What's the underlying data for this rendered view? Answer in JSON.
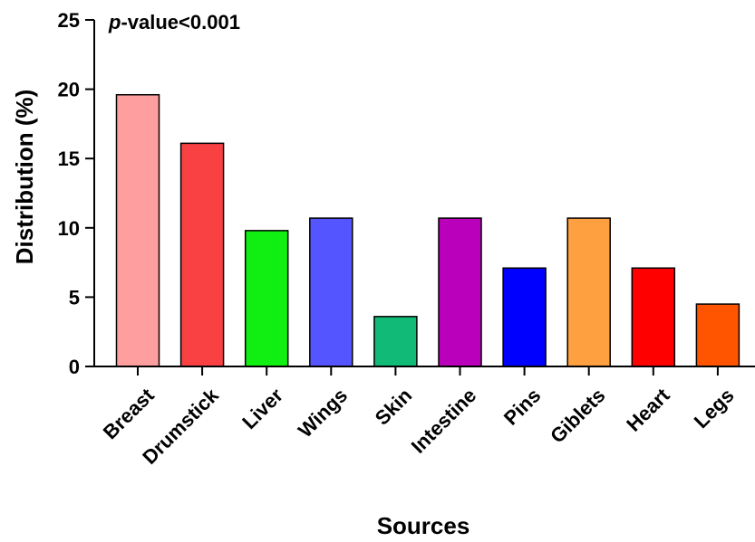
{
  "chart_data": {
    "type": "bar",
    "categories": [
      "Breast",
      "Drumstick",
      "Liver",
      "Wings",
      "Skin",
      "Intestine",
      "Pins",
      "Giblets",
      "Heart",
      "Legs"
    ],
    "values": [
      19.6,
      16.1,
      9.8,
      10.7,
      3.6,
      10.7,
      7.1,
      10.7,
      7.1,
      4.5
    ],
    "colors": [
      "#ff9e9e",
      "#f94144",
      "#11ee11",
      "#5555ff",
      "#11bb77",
      "#bb00bb",
      "#0000ff",
      "#ffa040",
      "#ff0000",
      "#ff5500"
    ],
    "xlabel": "Sources",
    "ylabel": "Distribution (%)",
    "ylim": [
      0,
      25
    ],
    "yticks": [
      "0",
      "5",
      "10",
      "15",
      "20",
      "25"
    ],
    "annotation": {
      "italic_part": "p",
      "rest": "-value<0.001"
    },
    "grid": false,
    "legend": "none"
  }
}
